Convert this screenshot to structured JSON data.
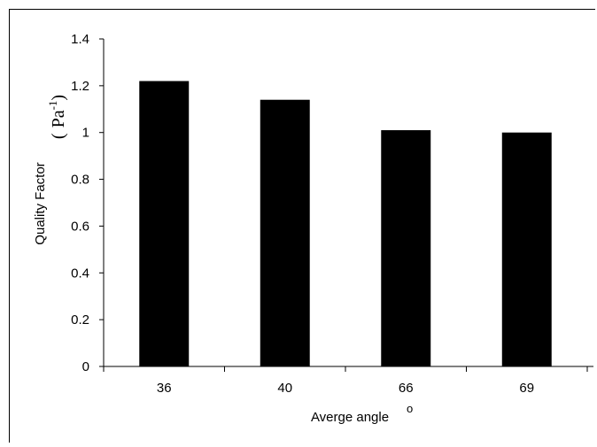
{
  "chart_data": {
    "type": "bar",
    "categories": [
      "36",
      "40",
      "66",
      "69"
    ],
    "values": [
      1.22,
      1.14,
      1.01,
      1.0
    ],
    "title": "",
    "xlabel": "Averge angle",
    "xlabel_suffix": "o",
    "ylabel": "Quality Factor",
    "ylabel_unit_open": "(",
    "ylabel_unit_base": "Pa",
    "ylabel_unit_exp": "-1",
    "ylabel_unit_close": ")",
    "ylim": [
      0,
      1.4
    ],
    "yticks": [
      "0",
      "0.2",
      "0.4",
      "0.6",
      "0.8",
      "1",
      "1.2",
      "1.4"
    ],
    "grid": false,
    "legend": "none",
    "bar_color": "#000000"
  }
}
